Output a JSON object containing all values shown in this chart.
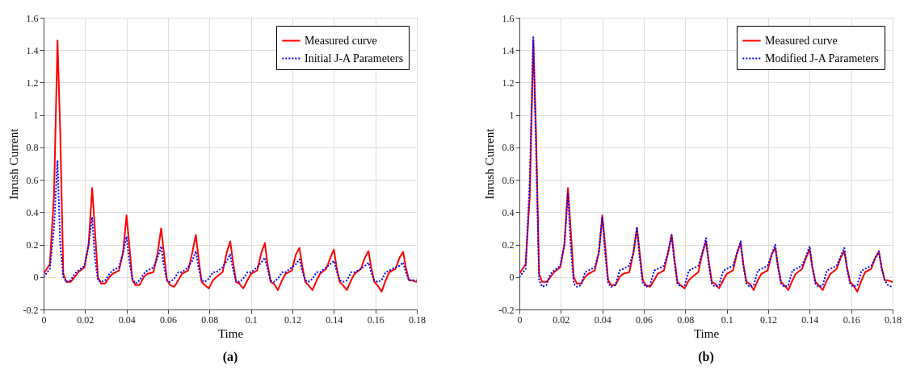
{
  "chart_data": [
    {
      "type": "line",
      "title": "(a)",
      "xlabel": "Time",
      "ylabel": "Inrush Current",
      "xlim": [
        0,
        0.18
      ],
      "ylim": [
        -0.2,
        1.6
      ],
      "xticks": [
        0,
        0.02,
        0.04,
        0.06,
        0.08,
        0.1,
        0.12,
        0.14,
        0.16,
        0.18
      ],
      "yticks": [
        -0.2,
        0,
        0.2,
        0.4,
        0.6,
        0.8,
        1,
        1.2,
        1.4,
        1.6
      ],
      "grid": true,
      "legend": "top right",
      "x": [
        0,
        0.003,
        0.005,
        0.0067,
        0.008,
        0.0095,
        0.011,
        0.013,
        0.015,
        0.0167,
        0.0197,
        0.0217,
        0.0234,
        0.0247,
        0.0262,
        0.0277,
        0.0297,
        0.0317,
        0.0333,
        0.0363,
        0.0383,
        0.04,
        0.0413,
        0.0428,
        0.0443,
        0.0463,
        0.0483,
        0.05,
        0.053,
        0.055,
        0.0567,
        0.058,
        0.0595,
        0.061,
        0.063,
        0.065,
        0.0667,
        0.0697,
        0.0717,
        0.0734,
        0.0747,
        0.0762,
        0.0777,
        0.0797,
        0.0817,
        0.0833,
        0.0863,
        0.0883,
        0.09,
        0.0913,
        0.0928,
        0.0943,
        0.0963,
        0.0983,
        0.1,
        0.103,
        0.105,
        0.1067,
        0.108,
        0.1095,
        0.111,
        0.113,
        0.115,
        0.1167,
        0.1197,
        0.1217,
        0.1234,
        0.1247,
        0.1262,
        0.1277,
        0.1297,
        0.1317,
        0.1333,
        0.1363,
        0.1383,
        0.14,
        0.1413,
        0.1428,
        0.1443,
        0.1463,
        0.1483,
        0.15,
        0.153,
        0.155,
        0.1567,
        0.158,
        0.1595,
        0.161,
        0.163,
        0.165,
        0.1667,
        0.1697,
        0.1717,
        0.1734,
        0.1747,
        0.1762,
        0.1777,
        0.1797,
        0.18
      ],
      "series": [
        {
          "name": "Measured curve",
          "color": "#ff0000",
          "line_style": "solid",
          "values": [
            0.02,
            0.08,
            0.5,
            1.46,
            0.9,
            0.02,
            -0.03,
            -0.03,
            0.0,
            0.03,
            0.06,
            0.2,
            0.55,
            0.3,
            0.0,
            -0.04,
            -0.04,
            0.0,
            0.02,
            0.04,
            0.15,
            0.38,
            0.2,
            -0.02,
            -0.05,
            -0.05,
            0.0,
            0.02,
            0.03,
            0.15,
            0.3,
            0.15,
            -0.02,
            -0.05,
            -0.06,
            -0.02,
            0.02,
            0.04,
            0.15,
            0.26,
            0.12,
            -0.03,
            -0.05,
            -0.07,
            -0.02,
            0.0,
            0.03,
            0.15,
            0.22,
            0.1,
            -0.03,
            -0.04,
            -0.07,
            -0.02,
            0.02,
            0.04,
            0.15,
            0.21,
            0.08,
            -0.03,
            -0.04,
            -0.08,
            -0.02,
            0.02,
            0.04,
            0.14,
            0.18,
            0.07,
            -0.03,
            -0.05,
            -0.08,
            -0.02,
            0.02,
            0.05,
            0.12,
            0.17,
            0.06,
            -0.03,
            -0.05,
            -0.08,
            -0.02,
            0.02,
            0.05,
            0.12,
            0.16,
            0.06,
            -0.03,
            -0.05,
            -0.09,
            -0.02,
            0.03,
            0.05,
            0.12,
            0.155,
            0.06,
            -0.02,
            -0.02,
            -0.03,
            -0.03
          ]
        },
        {
          "name": "Initial J-A Parameters",
          "color": "#0000ff",
          "line_style": "dotted",
          "values": [
            0.0,
            0.05,
            0.3,
            0.72,
            0.2,
            0.0,
            -0.03,
            -0.02,
            0.02,
            0.04,
            0.07,
            0.2,
            0.37,
            0.12,
            -0.02,
            -0.03,
            -0.02,
            0.02,
            0.04,
            0.06,
            0.15,
            0.25,
            0.1,
            -0.01,
            -0.04,
            -0.02,
            0.02,
            0.04,
            0.06,
            0.12,
            0.19,
            0.07,
            -0.02,
            -0.03,
            -0.01,
            0.03,
            0.03,
            0.06,
            0.1,
            0.16,
            0.06,
            -0.02,
            -0.03,
            -0.01,
            0.03,
            0.03,
            0.06,
            0.1,
            0.14,
            0.05,
            -0.02,
            -0.03,
            -0.01,
            0.03,
            0.03,
            0.06,
            0.09,
            0.12,
            0.05,
            -0.02,
            -0.03,
            -0.01,
            0.03,
            0.03,
            0.06,
            0.08,
            0.11,
            0.04,
            -0.02,
            -0.03,
            -0.01,
            0.03,
            0.03,
            0.06,
            0.08,
            0.1,
            0.04,
            -0.02,
            -0.03,
            -0.02,
            0.03,
            0.03,
            0.05,
            0.07,
            0.09,
            0.03,
            -0.02,
            -0.03,
            -0.02,
            0.03,
            0.04,
            0.06,
            0.07,
            0.09,
            0.03,
            -0.02,
            -0.02,
            -0.02,
            -0.02
          ]
        }
      ]
    },
    {
      "type": "line",
      "title": "(b)",
      "xlabel": "Time",
      "ylabel": "Inrush Current",
      "xlim": [
        0,
        0.18
      ],
      "ylim": [
        -0.2,
        1.6
      ],
      "xticks": [
        0,
        0.02,
        0.04,
        0.06,
        0.08,
        0.1,
        0.12,
        0.14,
        0.16,
        0.18
      ],
      "yticks": [
        -0.2,
        0,
        0.2,
        0.4,
        0.6,
        0.8,
        1,
        1.2,
        1.4,
        1.6
      ],
      "grid": true,
      "legend": "top right",
      "x": [
        0,
        0.003,
        0.005,
        0.0067,
        0.008,
        0.0095,
        0.011,
        0.013,
        0.015,
        0.0167,
        0.0197,
        0.0217,
        0.0234,
        0.0247,
        0.0262,
        0.0277,
        0.0297,
        0.0317,
        0.0333,
        0.0363,
        0.0383,
        0.04,
        0.0413,
        0.0428,
        0.0443,
        0.0463,
        0.0483,
        0.05,
        0.053,
        0.055,
        0.0567,
        0.058,
        0.0595,
        0.061,
        0.063,
        0.065,
        0.0667,
        0.0697,
        0.0717,
        0.0734,
        0.0747,
        0.0762,
        0.0777,
        0.0797,
        0.0817,
        0.0833,
        0.0863,
        0.0883,
        0.09,
        0.0913,
        0.0928,
        0.0943,
        0.0963,
        0.0983,
        0.1,
        0.103,
        0.105,
        0.1067,
        0.108,
        0.1095,
        0.111,
        0.113,
        0.115,
        0.1167,
        0.1197,
        0.1217,
        0.1234,
        0.1247,
        0.1262,
        0.1277,
        0.1297,
        0.1317,
        0.1333,
        0.1363,
        0.1383,
        0.14,
        0.1413,
        0.1428,
        0.1443,
        0.1463,
        0.1483,
        0.15,
        0.153,
        0.155,
        0.1567,
        0.158,
        0.1595,
        0.161,
        0.163,
        0.165,
        0.1667,
        0.1697,
        0.1717,
        0.1734,
        0.1747,
        0.1762,
        0.1777,
        0.1797,
        0.18
      ],
      "series": [
        {
          "name": "Measured curve",
          "color": "#ff0000",
          "line_style": "solid",
          "values": [
            0.02,
            0.08,
            0.5,
            1.46,
            0.9,
            0.02,
            -0.03,
            -0.03,
            0.0,
            0.03,
            0.06,
            0.2,
            0.55,
            0.3,
            0.0,
            -0.04,
            -0.04,
            0.0,
            0.02,
            0.04,
            0.15,
            0.38,
            0.2,
            -0.02,
            -0.05,
            -0.05,
            0.0,
            0.02,
            0.03,
            0.15,
            0.3,
            0.15,
            -0.02,
            -0.05,
            -0.06,
            -0.02,
            0.02,
            0.04,
            0.15,
            0.26,
            0.12,
            -0.03,
            -0.05,
            -0.07,
            -0.02,
            0.0,
            0.03,
            0.15,
            0.22,
            0.1,
            -0.03,
            -0.04,
            -0.07,
            -0.02,
            0.02,
            0.04,
            0.15,
            0.21,
            0.08,
            -0.03,
            -0.04,
            -0.08,
            -0.02,
            0.02,
            0.04,
            0.14,
            0.18,
            0.07,
            -0.03,
            -0.05,
            -0.08,
            -0.02,
            0.02,
            0.05,
            0.12,
            0.17,
            0.06,
            -0.03,
            -0.05,
            -0.08,
            -0.02,
            0.02,
            0.05,
            0.12,
            0.16,
            0.06,
            -0.03,
            -0.05,
            -0.09,
            -0.02,
            0.03,
            0.05,
            0.12,
            0.155,
            0.06,
            -0.02,
            -0.02,
            -0.03,
            -0.03
          ]
        },
        {
          "name": "Modified J-A Parameters",
          "color": "#0000ff",
          "line_style": "dotted",
          "values": [
            0.0,
            0.05,
            0.6,
            1.48,
            0.8,
            -0.02,
            -0.06,
            -0.05,
            0.02,
            0.04,
            0.07,
            0.2,
            0.52,
            0.2,
            -0.04,
            -0.06,
            -0.05,
            0.03,
            0.04,
            0.06,
            0.15,
            0.37,
            0.15,
            -0.04,
            -0.06,
            -0.05,
            0.04,
            0.05,
            0.07,
            0.15,
            0.31,
            0.12,
            -0.04,
            -0.06,
            -0.05,
            0.04,
            0.05,
            0.07,
            0.15,
            0.26,
            0.1,
            -0.04,
            -0.06,
            -0.05,
            0.04,
            0.05,
            0.07,
            0.15,
            0.24,
            0.08,
            -0.04,
            -0.06,
            -0.05,
            0.04,
            0.05,
            0.07,
            0.15,
            0.22,
            0.07,
            -0.04,
            -0.06,
            -0.05,
            0.04,
            0.05,
            0.07,
            0.14,
            0.2,
            0.06,
            -0.04,
            -0.06,
            -0.05,
            0.04,
            0.05,
            0.07,
            0.13,
            0.19,
            0.06,
            -0.04,
            -0.06,
            -0.05,
            0.04,
            0.05,
            0.07,
            0.13,
            0.18,
            0.05,
            -0.04,
            -0.06,
            -0.05,
            0.04,
            0.05,
            0.07,
            0.12,
            0.16,
            0.05,
            -0.02,
            -0.05,
            -0.06,
            -0.06
          ]
        }
      ]
    }
  ]
}
